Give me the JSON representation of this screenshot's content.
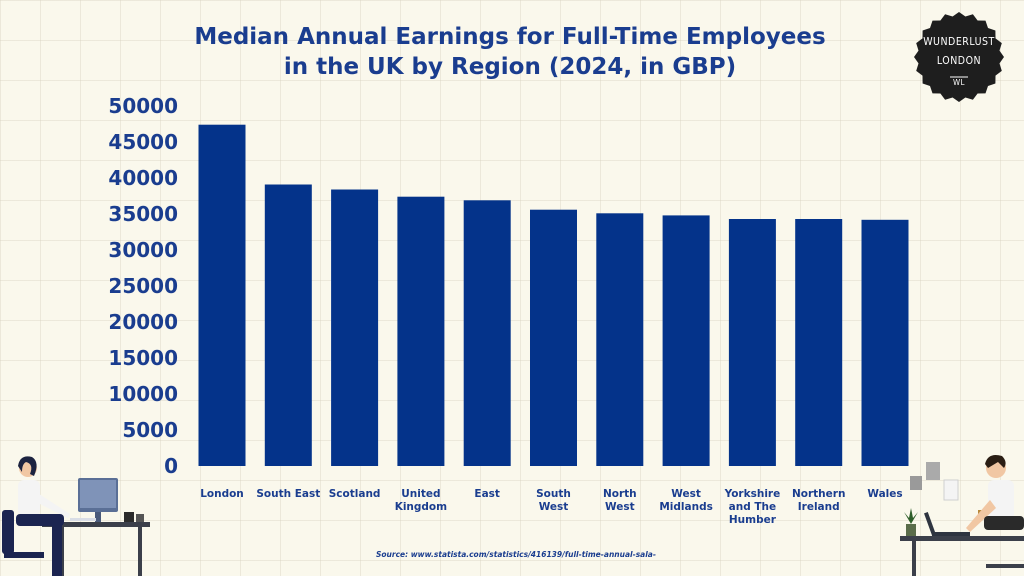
{
  "title_lines": [
    "Median Annual Earnings for Full-Time Employees",
    "in the UK by Region (2024, in GBP)"
  ],
  "source": "Source: www.statista.com/statistics/416139/full-time-annual-sala-",
  "logo": {
    "line1": "WUNDERLUST",
    "line2": "LONDON",
    "mark": "WL"
  },
  "colors": {
    "bar": "#04338a",
    "text": "#1a3d8f",
    "background": "#faf8ec"
  },
  "chart_data": {
    "type": "bar",
    "title": "Median Annual Earnings for Full-Time Employees in the UK by Region (2024, in GBP)",
    "xlabel": "",
    "ylabel": "",
    "ylim": [
      0,
      50000
    ],
    "yticks": [
      0,
      5000,
      10000,
      15000,
      20000,
      25000,
      30000,
      35000,
      40000,
      45000,
      50000
    ],
    "categories": [
      [
        "London"
      ],
      [
        "South East"
      ],
      [
        "Scotland"
      ],
      [
        "United",
        "Kingdom"
      ],
      [
        "East"
      ],
      [
        "South",
        "West"
      ],
      [
        "North",
        "West"
      ],
      [
        "West",
        "Midlands"
      ],
      [
        "Yorkshire",
        "and The",
        "Humber"
      ],
      [
        "Northern",
        "Ireland"
      ],
      [
        "Wales"
      ]
    ],
    "values": [
      47400,
      39100,
      38400,
      37400,
      36900,
      35600,
      35100,
      34800,
      34300,
      34300,
      34200
    ],
    "grid": false
  }
}
